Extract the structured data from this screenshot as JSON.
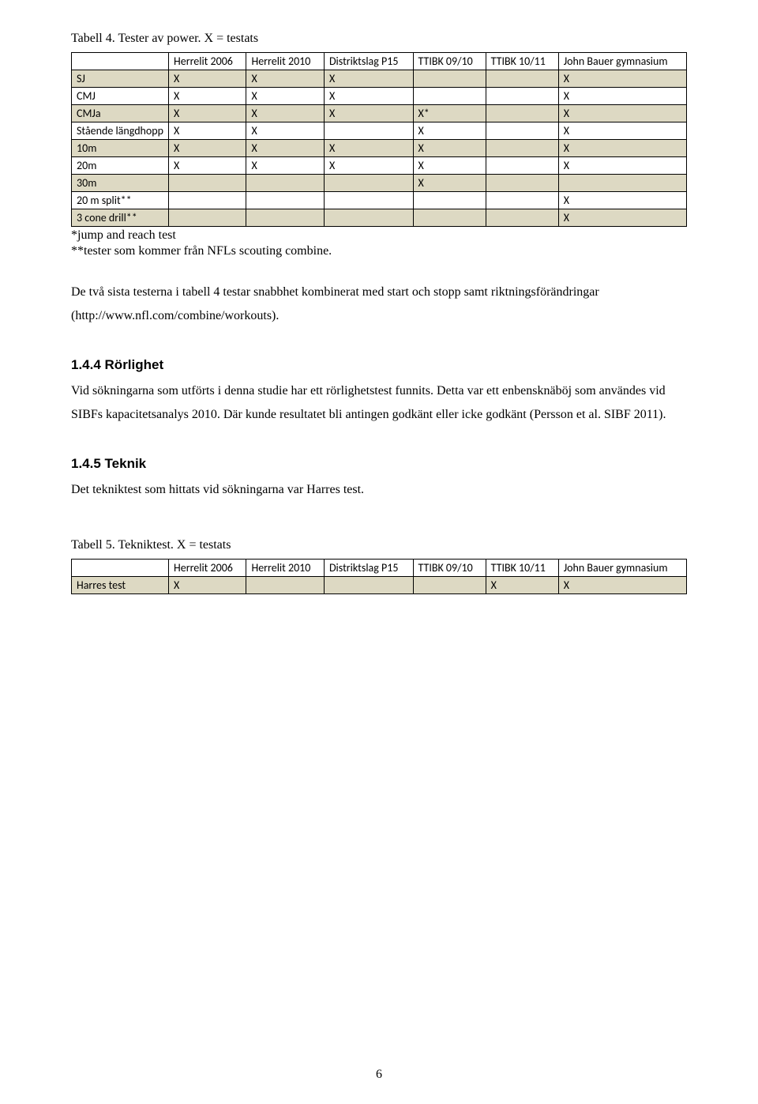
{
  "table4": {
    "caption": "Tabell 4. Tester av power. X = testats",
    "headers": [
      "",
      "Herrelit 2006",
      "Herrelit 2010",
      "Distriktslag P15",
      "TTIBK 09/10",
      "TTIBK 10/11",
      "John Bauer gymnasium"
    ],
    "rows": [
      {
        "label": "SJ",
        "cells": [
          "X",
          "X",
          "X",
          "",
          "",
          "X"
        ],
        "tan": true
      },
      {
        "label": "CMJ",
        "cells": [
          "X",
          "X",
          "X",
          "",
          "",
          "X"
        ],
        "tan": false
      },
      {
        "label": "CMJa",
        "cells": [
          "X",
          "X",
          "X",
          "X*",
          "",
          "X"
        ],
        "tan": true
      },
      {
        "label": "Stående längdhopp",
        "cells": [
          "X",
          "X",
          "",
          "X",
          "",
          "X"
        ],
        "tan": false
      },
      {
        "label": "10m",
        "cells": [
          "X",
          "X",
          "X",
          "X",
          "",
          "X"
        ],
        "tan": true
      },
      {
        "label": "20m",
        "cells": [
          "X",
          "X",
          "X",
          "X",
          "",
          "X"
        ],
        "tan": false
      },
      {
        "label": "30m",
        "cells": [
          "",
          "",
          "",
          "X",
          "",
          ""
        ],
        "tan": true
      },
      {
        "label": "20 m split**",
        "cells": [
          "",
          "",
          "",
          "",
          "",
          "X"
        ],
        "tan": false
      },
      {
        "label": "3 cone drill**",
        "cells": [
          "",
          "",
          "",
          "",
          "",
          "X"
        ],
        "tan": true
      }
    ],
    "footnote1": "*jump and reach test",
    "footnote2": "**tester som kommer från NFLs scouting combine."
  },
  "para1": "De två sista testerna i tabell 4 testar snabbhet kombinerat med start och stopp samt riktningsförändringar (http://www.nfl.com/combine/workouts).",
  "section144": {
    "heading": "1.4.4  Rörlighet",
    "body": "Vid sökningarna som utförts i denna studie har ett rörlighetstest funnits. Detta var ett enbensknäböj som användes vid SIBFs kapacitetsanalys 2010. Där kunde resultatet bli antingen godkänt eller icke godkänt (Persson et al. SIBF 2011)."
  },
  "section145": {
    "heading": "1.4.5  Teknik",
    "body": "Det tekniktest som hittats vid sökningarna var Harres test."
  },
  "table5": {
    "caption": "Tabell 5. Tekniktest. X = testats",
    "headers": [
      "",
      "Herrelit 2006",
      "Herrelit 2010",
      "Distriktslag P15",
      "TTIBK 09/10",
      "TTIBK 10/11",
      "John Bauer gymnasium"
    ],
    "row": {
      "label": "Harres test",
      "cells": [
        "X",
        "",
        "",
        "",
        "X",
        "X"
      ]
    }
  },
  "pageNumber": "6"
}
